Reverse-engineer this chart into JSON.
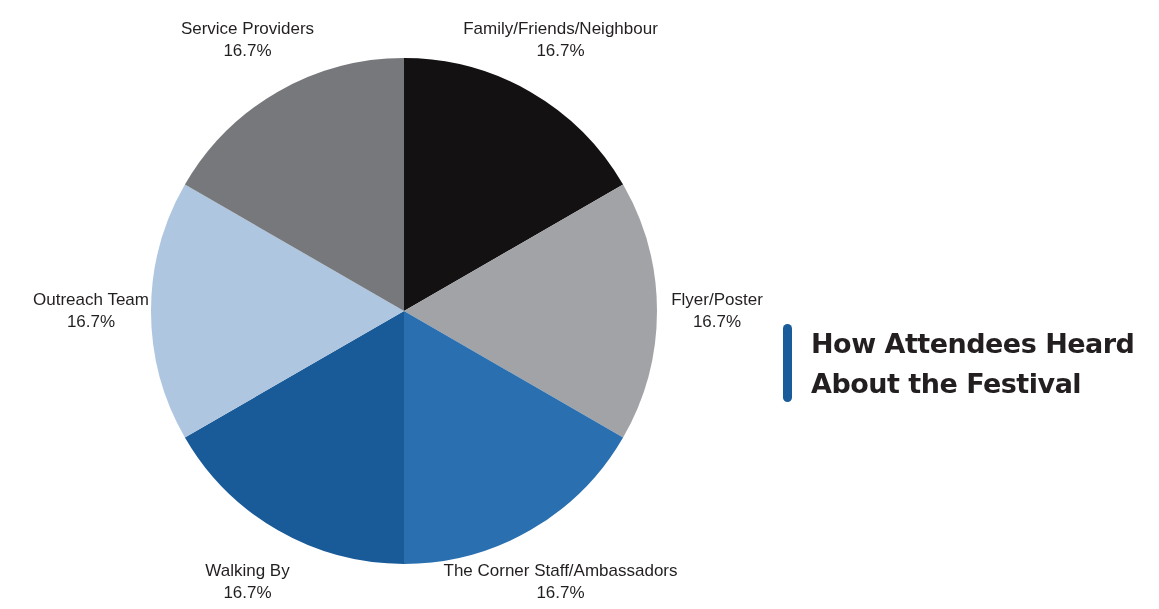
{
  "chart_data": {
    "type": "pie",
    "title": "How Attendees Heard About the Festival",
    "categories": [
      "Family/Friends/Neighbour",
      "Flyer/Poster",
      "The Corner Staff/Ambassadors",
      "Walking By",
      "Outreach Team",
      "Service Providers"
    ],
    "values": [
      16.7,
      16.7,
      16.7,
      16.7,
      16.7,
      16.7
    ],
    "value_labels": [
      "16.7%",
      "16.7%",
      "16.7%",
      "16.7%",
      "16.7%",
      "16.7%"
    ],
    "colors": [
      "#141112",
      "#a2a3a7",
      "#2a6faf",
      "#195a98",
      "#aec6df",
      "#77787c"
    ],
    "legend": false
  }
}
